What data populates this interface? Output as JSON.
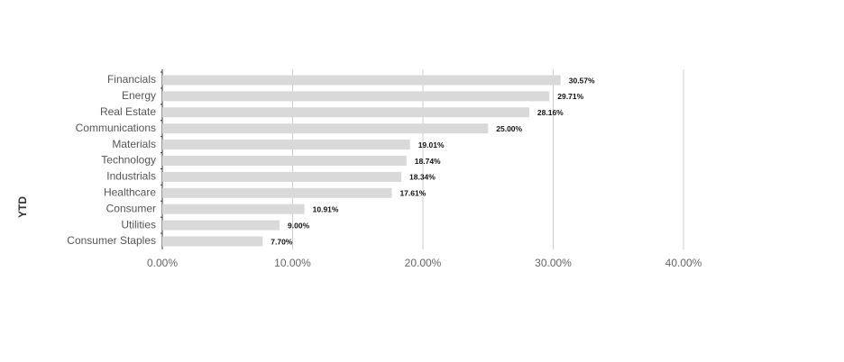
{
  "chart_data": {
    "type": "bar",
    "orientation": "horizontal",
    "y_label": "YTD",
    "categories": [
      "Financials",
      "Energy",
      "Real Estate",
      "Communications",
      "Materials",
      "Technology",
      "Industrials",
      "Healthcare",
      "Consumer",
      "Utilities",
      "Consumer Staples"
    ],
    "values": [
      30.57,
      29.71,
      28.16,
      25.0,
      19.01,
      18.74,
      18.34,
      17.61,
      10.91,
      9.0,
      7.7
    ],
    "value_labels": [
      "30.57%",
      "29.71%",
      "28.16%",
      "25.00%",
      "19.01%",
      "18.74%",
      "18.34%",
      "17.61%",
      "10.91%",
      "9.00%",
      "7.70%"
    ],
    "color": "#d9d9d9",
    "xlim": [
      0,
      40
    ],
    "xticks": [
      {
        "value": 0,
        "label": "0.00%"
      },
      {
        "value": 10,
        "label": "10.00%"
      },
      {
        "value": 20,
        "label": "20.00%"
      },
      {
        "value": 30,
        "label": "30.00%"
      },
      {
        "value": 40,
        "label": "40.00%"
      }
    ],
    "grid": true
  }
}
